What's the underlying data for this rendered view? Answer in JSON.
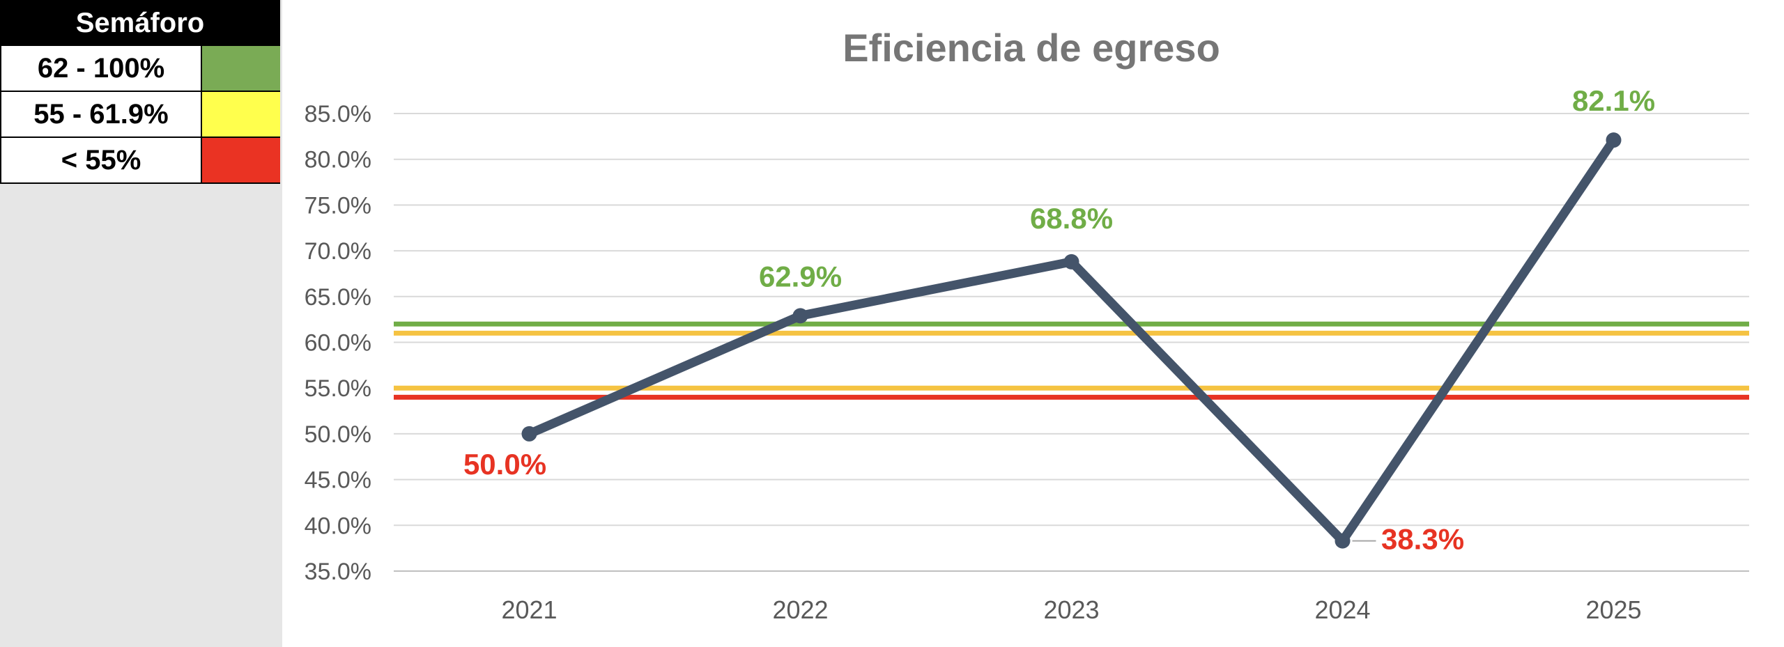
{
  "legend": {
    "title": "Semáforo",
    "items": [
      {
        "label": "62 - 100%",
        "color": "#7aab55"
      },
      {
        "label": "55 - 61.9%",
        "color": "#ffff4d"
      },
      {
        "label": "< 55%",
        "color": "#ea3323"
      }
    ]
  },
  "chart_data": {
    "type": "line",
    "title": "Eficiencia de egreso",
    "categories": [
      "2021",
      "2022",
      "2023",
      "2024",
      "2025"
    ],
    "series": [
      {
        "name": "Eficiencia de egreso",
        "values": [
          50.0,
          62.9,
          68.8,
          38.3,
          82.1
        ],
        "color": "#44546a"
      }
    ],
    "data_labels": [
      "50.0%",
      "62.9%",
      "68.8%",
      "38.3%",
      "82.1%"
    ],
    "data_label_colors": [
      "#e73323",
      "#70ad47",
      "#70ad47",
      "#e73323",
      "#70ad47"
    ],
    "ylim": [
      35,
      85
    ],
    "ytick_step": 5,
    "ytick_labels": [
      "35.0%",
      "40.0%",
      "45.0%",
      "50.0%",
      "55.0%",
      "60.0%",
      "65.0%",
      "70.0%",
      "75.0%",
      "80.0%",
      "85.0%"
    ],
    "reference_lines": [
      {
        "value": 62.0,
        "color": "#70ad47"
      },
      {
        "value": 61.0,
        "color": "#f5c342"
      },
      {
        "value": 55.0,
        "color": "#f5c342"
      },
      {
        "value": 54.0,
        "color": "#e73323"
      }
    ],
    "grid": true
  }
}
